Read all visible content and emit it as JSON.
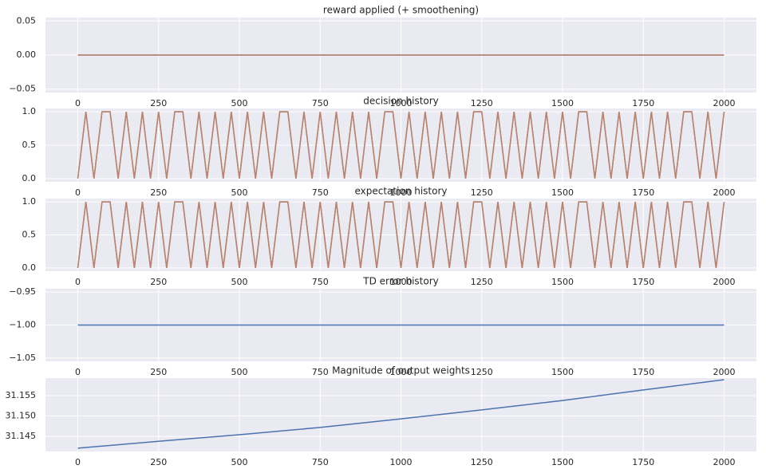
{
  "chart_data": [
    {
      "type": "line",
      "title": "reward applied (+ smoothening)",
      "x": [
        0,
        2000
      ],
      "series": [
        {
          "color": "#4c72b0",
          "values": [
            0,
            0
          ]
        },
        {
          "color": "#dd8452",
          "values": [
            0,
            0
          ]
        }
      ],
      "xlim": [
        -100,
        2100
      ],
      "xticks": [
        0,
        250,
        500,
        750,
        1000,
        1250,
        1500,
        1750,
        2000
      ],
      "ylim": [
        -0.055,
        0.055
      ],
      "yticks": [
        {
          "value": -0.05,
          "label": "−0.05"
        },
        {
          "value": 0,
          "label": "0.00"
        },
        {
          "value": 0.05,
          "label": "0.05"
        }
      ],
      "grid": true
    },
    {
      "type": "line",
      "title": "decision history",
      "x": [
        0,
        25,
        50,
        75,
        100,
        125,
        150,
        175,
        200,
        225,
        250,
        275,
        300,
        325,
        350,
        375,
        400,
        425,
        450,
        475,
        500,
        525,
        550,
        575,
        600,
        625,
        650,
        675,
        700,
        725,
        750,
        775,
        800,
        825,
        850,
        875,
        900,
        925,
        950,
        975,
        1000,
        1025,
        1050,
        1075,
        1100,
        1125,
        1150,
        1175,
        1200,
        1225,
        1250,
        1275,
        1300,
        1325,
        1350,
        1375,
        1400,
        1425,
        1450,
        1475,
        1500,
        1525,
        1550,
        1575,
        1600,
        1625,
        1650,
        1675,
        1700,
        1725,
        1750,
        1775,
        1800,
        1825,
        1850,
        1875,
        1900,
        1925,
        1950,
        1975,
        2000
      ],
      "series": [
        {
          "color": "#4c72b0",
          "values": [
            0,
            1,
            0,
            1,
            1,
            0,
            1,
            0,
            1,
            0,
            1,
            0,
            1,
            1,
            0,
            1,
            0,
            1,
            0,
            1,
            0,
            1,
            0,
            1,
            0,
            1,
            1,
            0,
            1,
            0,
            1,
            0,
            1,
            0,
            1,
            0,
            1,
            0,
            1,
            1,
            0,
            1,
            0,
            1,
            0,
            1,
            0,
            1,
            0,
            1,
            1,
            0,
            1,
            0,
            1,
            0,
            1,
            0,
            1,
            0,
            1,
            0,
            1,
            1,
            0,
            1,
            0,
            1,
            0,
            1,
            0,
            1,
            0,
            1,
            0,
            1,
            1,
            0,
            1,
            0,
            1
          ]
        },
        {
          "color": "#dd8452",
          "values": [
            0,
            1,
            0,
            1,
            1,
            0,
            1,
            0,
            1,
            0,
            1,
            0,
            1,
            1,
            0,
            1,
            0,
            1,
            0,
            1,
            0,
            1,
            0,
            1,
            0,
            1,
            1,
            0,
            1,
            0,
            1,
            0,
            1,
            0,
            1,
            0,
            1,
            0,
            1,
            1,
            0,
            1,
            0,
            1,
            0,
            1,
            0,
            1,
            0,
            1,
            1,
            0,
            1,
            0,
            1,
            0,
            1,
            0,
            1,
            0,
            1,
            0,
            1,
            1,
            0,
            1,
            0,
            1,
            0,
            1,
            0,
            1,
            0,
            1,
            0,
            1,
            1,
            0,
            1,
            0,
            1
          ]
        }
      ],
      "xlim": [
        -100,
        2100
      ],
      "xticks": [
        0,
        250,
        500,
        750,
        1000,
        1250,
        1500,
        1750,
        2000
      ],
      "ylim": [
        -0.05,
        1.05
      ],
      "yticks": [
        {
          "value": 0,
          "label": "0.0"
        },
        0.5,
        {
          "value": 1,
          "label": "1.0"
        }
      ],
      "grid": true
    },
    {
      "type": "line",
      "title": "expectation history",
      "x": [
        0,
        25,
        50,
        75,
        100,
        125,
        150,
        175,
        200,
        225,
        250,
        275,
        300,
        325,
        350,
        375,
        400,
        425,
        450,
        475,
        500,
        525,
        550,
        575,
        600,
        625,
        650,
        675,
        700,
        725,
        750,
        775,
        800,
        825,
        850,
        875,
        900,
        925,
        950,
        975,
        1000,
        1025,
        1050,
        1075,
        1100,
        1125,
        1150,
        1175,
        1200,
        1225,
        1250,
        1275,
        1300,
        1325,
        1350,
        1375,
        1400,
        1425,
        1450,
        1475,
        1500,
        1525,
        1550,
        1575,
        1600,
        1625,
        1650,
        1675,
        1700,
        1725,
        1750,
        1775,
        1800,
        1825,
        1850,
        1875,
        1900,
        1925,
        1950,
        1975,
        2000
      ],
      "series": [
        {
          "color": "#4c72b0",
          "values": [
            0,
            1,
            0,
            1,
            1,
            0,
            1,
            0,
            1,
            0,
            1,
            0,
            1,
            1,
            0,
            1,
            0,
            1,
            0,
            1,
            0,
            1,
            0,
            1,
            0,
            1,
            1,
            0,
            1,
            0,
            1,
            0,
            1,
            0,
            1,
            0,
            1,
            0,
            1,
            1,
            0,
            1,
            0,
            1,
            0,
            1,
            0,
            1,
            0,
            1,
            1,
            0,
            1,
            0,
            1,
            0,
            1,
            0,
            1,
            0,
            1,
            0,
            1,
            1,
            0,
            1,
            0,
            1,
            0,
            1,
            0,
            1,
            0,
            1,
            0,
            1,
            1,
            0,
            1,
            0,
            1
          ]
        },
        {
          "color": "#dd8452",
          "values": [
            0,
            1,
            0,
            1,
            1,
            0,
            1,
            0,
            1,
            0,
            1,
            0,
            1,
            1,
            0,
            1,
            0,
            1,
            0,
            1,
            0,
            1,
            0,
            1,
            0,
            1,
            1,
            0,
            1,
            0,
            1,
            0,
            1,
            0,
            1,
            0,
            1,
            0,
            1,
            1,
            0,
            1,
            0,
            1,
            0,
            1,
            0,
            1,
            0,
            1,
            1,
            0,
            1,
            0,
            1,
            0,
            1,
            0,
            1,
            0,
            1,
            0,
            1,
            1,
            0,
            1,
            0,
            1,
            0,
            1,
            0,
            1,
            0,
            1,
            0,
            1,
            1,
            0,
            1,
            0,
            1
          ]
        }
      ],
      "xlim": [
        -100,
        2100
      ],
      "xticks": [
        0,
        250,
        500,
        750,
        1000,
        1250,
        1500,
        1750,
        2000
      ],
      "ylim": [
        -0.05,
        1.05
      ],
      "yticks": [
        {
          "value": 0,
          "label": "0.0"
        },
        0.5,
        {
          "value": 1,
          "label": "1.0"
        }
      ],
      "grid": true
    },
    {
      "type": "line",
      "title": "TD error history",
      "x": [
        0,
        2000
      ],
      "series": [
        {
          "color": "#4c72b0",
          "values": [
            -1,
            -1
          ]
        }
      ],
      "xlim": [
        -100,
        2100
      ],
      "xticks": [
        0,
        250,
        500,
        750,
        1000,
        1250,
        1500,
        1750,
        2000
      ],
      "ylim": [
        -1.055,
        -0.945
      ],
      "yticks": [
        {
          "value": -1.05,
          "label": "−1.05"
        },
        {
          "value": -1,
          "label": "−1.00"
        },
        {
          "value": -0.95,
          "label": "−0.95"
        }
      ],
      "grid": true
    },
    {
      "type": "line",
      "title": "Magnitude of output weights",
      "x": [
        0,
        250,
        500,
        750,
        1000,
        1250,
        1500,
        1750,
        2000
      ],
      "series": [
        {
          "color": "#4c72b0",
          "values": [
            31.1421,
            31.1438,
            31.1454,
            31.1472,
            31.1493,
            31.1515,
            31.1538,
            31.1564,
            31.1589
          ]
        }
      ],
      "xlim": [
        -100,
        2100
      ],
      "xticks": [
        0,
        250,
        500,
        750,
        1000,
        1250,
        1500,
        1750,
        2000
      ],
      "ylim": [
        31.1413,
        31.1593
      ],
      "yticks": [
        31.145,
        {
          "value": 31.15,
          "label": "31.150"
        },
        31.155
      ],
      "grid": true
    }
  ]
}
